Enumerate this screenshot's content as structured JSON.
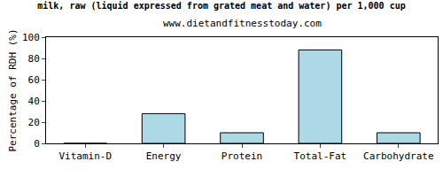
{
  "chart_data": {
    "type": "bar",
    "title": "milk, raw (liquid expressed from grated meat and water) per 1,000 cup",
    "subtitle": "www.dietandfitnesstoday.com",
    "y_label": "Percentage of RDH (%)",
    "categories": [
      "Vitamin-D",
      "Energy",
      "Protein",
      "Total-Fat",
      "Carbohydrate"
    ],
    "values": [
      0,
      28,
      10,
      88,
      10
    ],
    "color": "#add8e6",
    "ylim": [
      0,
      100
    ],
    "yticks": [
      0,
      20,
      40,
      60,
      80,
      100
    ],
    "grid": false
  }
}
